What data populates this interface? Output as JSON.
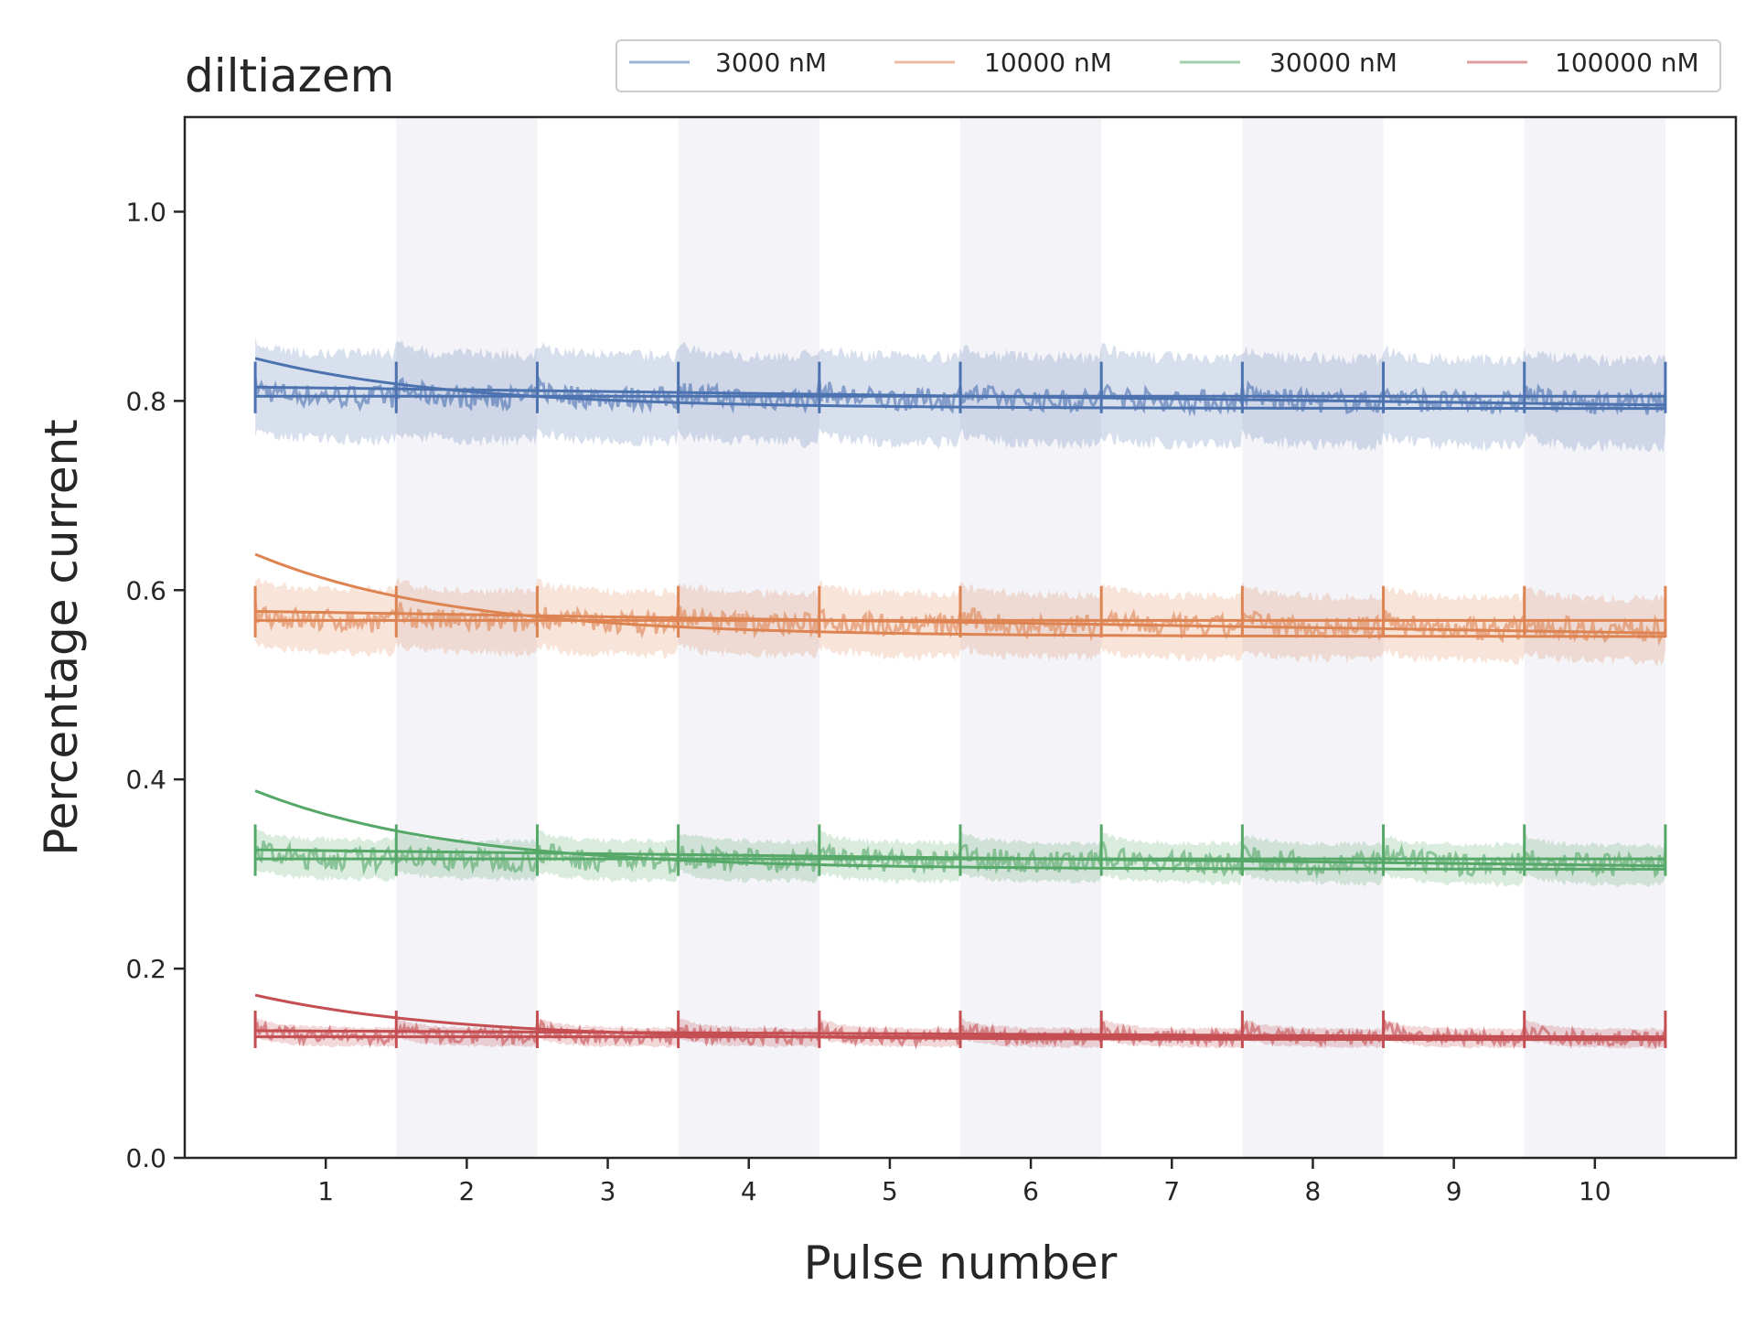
{
  "chart_data": {
    "type": "line",
    "title": "diltiazem",
    "xlabel": "Pulse number",
    "ylabel": "Percentage current",
    "xlim": [
      0,
      11.0
    ],
    "ylim": [
      0.0,
      1.1
    ],
    "x_ticks": [
      1,
      2,
      3,
      4,
      5,
      6,
      7,
      8,
      9,
      10
    ],
    "y_ticks": [
      0.0,
      0.2,
      0.4,
      0.6,
      0.8,
      1.0
    ],
    "y_tick_labels": [
      "0.0",
      "0.2",
      "0.4",
      "0.6",
      "0.8",
      "1.0"
    ],
    "x_tick_labels": [
      "1",
      "2",
      "3",
      "4",
      "5",
      "6",
      "7",
      "8",
      "9",
      "10"
    ],
    "shaded_pulses": [
      2,
      4,
      6,
      8,
      10
    ],
    "grid": false,
    "legend_position": "top-right",
    "series": [
      {
        "name": "3000 nM",
        "color": "#4c72b0",
        "plateau": 0.805,
        "fit_start": 0.845,
        "fit_end": 0.792,
        "noise": 0.012,
        "band": 0.055
      },
      {
        "name": "10000 nM",
        "color": "#dd8452",
        "plateau": 0.568,
        "fit_start": 0.638,
        "fit_end": 0.551,
        "noise": 0.012,
        "band": 0.04
      },
      {
        "name": "30000 nM",
        "color": "#55a868",
        "plateau": 0.316,
        "fit_start": 0.388,
        "fit_end": 0.305,
        "noise": 0.012,
        "band": 0.025
      },
      {
        "name": "100000 nM",
        "color": "#c44e52",
        "plateau": 0.128,
        "fit_start": 0.172,
        "fit_end": 0.125,
        "noise": 0.008,
        "band": 0.012
      }
    ]
  }
}
